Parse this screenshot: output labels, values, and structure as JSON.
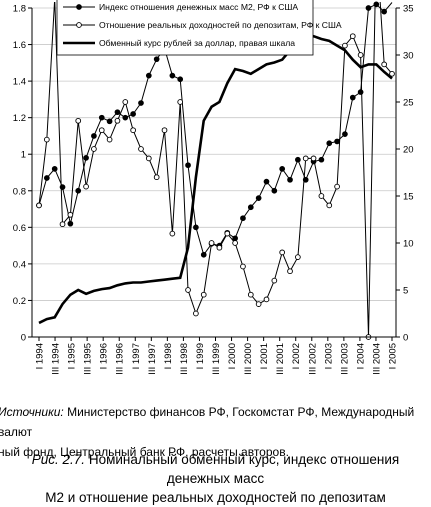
{
  "chart_data": {
    "type": "line",
    "y_left": {
      "ticks": [
        "0",
        "0.2",
        "0.4",
        "0.6",
        "0.8",
        "1",
        "1.2",
        "1.4",
        "1.6",
        "1.8"
      ],
      "range": [
        0,
        1.8
      ]
    },
    "y_right": {
      "ticks": [
        "0",
        "5",
        "10",
        "15",
        "20",
        "25",
        "30",
        "35"
      ],
      "range": [
        0,
        35
      ]
    },
    "x_ticks": [
      "I 1994",
      "III 1994",
      "I 1995",
      "III 1995",
      "I 1996",
      "III 1996",
      "I 1997",
      "III 1997",
      "I 1998",
      "III 1998",
      "I 1999",
      "III 1999",
      "I 2000",
      "III 2000",
      "I 2001",
      "III 2001",
      "I 2002",
      "III 2002",
      "I 2003",
      "III 2003",
      "I 2004",
      "III 2004",
      "I 2005"
    ],
    "grid": "horizontal",
    "legend_position": "top",
    "series": [
      {
        "name": "Индекс отношения денежных масс М2, РФ к США",
        "axis": "left",
        "marker": "filled-circle",
        "values": [
          0.72,
          0.87,
          0.92,
          0.82,
          0.62,
          0.8,
          0.98,
          1.1,
          1.2,
          1.18,
          1.23,
          1.2,
          1.22,
          1.28,
          1.43,
          1.52,
          1.58,
          1.43,
          1.41,
          0.94,
          0.6,
          0.45,
          0.51,
          0.5,
          0.57,
          0.54,
          0.65,
          0.71,
          0.76,
          0.85,
          0.8,
          0.92,
          0.86,
          0.97,
          0.86,
          0.96,
          0.97,
          1.06,
          1.07,
          1.11,
          1.31,
          1.34,
          1.8,
          1.82,
          1.78,
          1.83
        ]
      },
      {
        "name": "Отношение реальных доходностей по депозитам, РФ к США",
        "axis": "right",
        "marker": "open-circle",
        "values": [
          14,
          21,
          36,
          12,
          13,
          23,
          16,
          20,
          22,
          21,
          23,
          25,
          22,
          20,
          19,
          17,
          22,
          11,
          25,
          5,
          2.5,
          4.5,
          10,
          9.5,
          11,
          10,
          7.5,
          4.5,
          3.5,
          4,
          6,
          9,
          7,
          8.5,
          19,
          19,
          15,
          14,
          16,
          31,
          32,
          30,
          0,
          42,
          29,
          28
        ]
      },
      {
        "name": "Обменный курс рублей за доллар, правая шкала",
        "axis": "right",
        "marker": "none",
        "values": [
          1.5,
          1.9,
          2.1,
          3.5,
          4.5,
          5.0,
          4.6,
          4.9,
          5.1,
          5.2,
          5.5,
          5.7,
          5.8,
          5.8,
          5.9,
          6.0,
          6.1,
          6.2,
          6.3,
          9.5,
          17,
          23,
          24.5,
          25,
          27,
          28.5,
          28.3,
          28,
          28.5,
          29,
          29.2,
          29.5,
          30.5,
          31.5,
          31.8,
          32,
          31.7,
          31.5,
          31,
          30.5,
          29.5,
          28.7,
          29,
          29,
          28.2,
          27.5
        ]
      }
    ]
  },
  "source": {
    "label": "Источники:",
    "text_line1": "Министерство финансов РФ, Госкомстат РФ, Международный валют",
    "text_line2": "ный фонд, Центральный банк РФ, расчеты авторов."
  },
  "caption": {
    "label": "Рис. 2.7.",
    "text_line1": "Номинальный обменный курс, индекс отношения денежных масс",
    "text_line2": "М2 и отношение реальных доходностей по депозитам"
  }
}
